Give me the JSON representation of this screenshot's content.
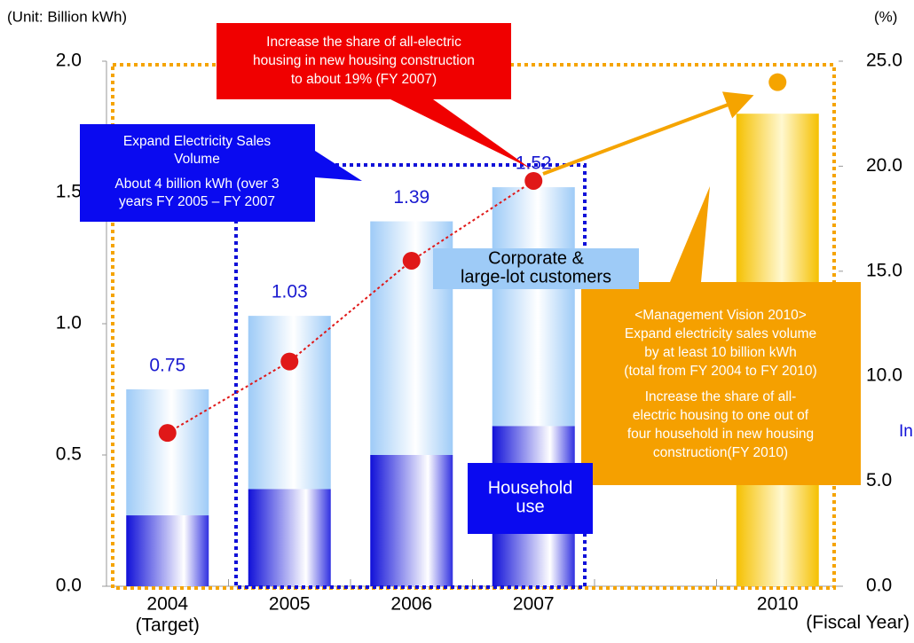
{
  "chart_data": {
    "type": "bar",
    "y_unit_label": "(Unit: Billion kWh)",
    "y2_unit_label": "(%)",
    "x_label": "(Fiscal Year)",
    "categories": [
      "2004",
      "2005",
      "2006",
      "2007",
      null,
      "2010"
    ],
    "category_notes": [
      "(Target)",
      null,
      null,
      null,
      null,
      null
    ],
    "ylim": [
      0,
      2.0
    ],
    "yticks": [
      {
        "value": 0,
        "label": "0.0"
      },
      {
        "value": 0.5,
        "label": "0.5"
      },
      {
        "value": 1.0,
        "label": "1.0"
      },
      {
        "value": 1.5,
        "label": "1.5"
      },
      {
        "value": 2.0,
        "label": "2.0"
      }
    ],
    "y2lim": [
      0,
      25.0
    ],
    "y2ticks": [
      {
        "value": 0,
        "label": "0.0"
      },
      {
        "value": 5,
        "label": "5.0"
      },
      {
        "value": 10,
        "label": "10.0"
      },
      {
        "value": 15,
        "label": "15.0"
      },
      {
        "value": 20,
        "label": "20.0"
      },
      {
        "value": 25,
        "label": "25.0"
      }
    ],
    "series": [
      {
        "name": "Household use",
        "color": "#1010d8",
        "values": [
          0.27,
          0.37,
          0.5,
          0.61,
          null,
          null
        ]
      },
      {
        "name": "Corporate & large-lot customers",
        "color": "#9ecbf7",
        "values": [
          0.48,
          0.66,
          0.89,
          0.91,
          null,
          null
        ]
      },
      {
        "type": "line",
        "axis": "y2",
        "color": "#e01818",
        "point_colors": [
          "#e01818",
          "#e01818",
          "#e01818",
          "#e01818",
          null,
          "#f5a400"
        ],
        "values": [
          7.3,
          10.7,
          15.5,
          19.3,
          null,
          24
        ]
      }
    ],
    "target_bar": {
      "color": "#f5c000",
      "values": [
        null,
        null,
        null,
        null,
        null,
        1.8
      ]
    },
    "totals": [
      0.75,
      1.03,
      1.39,
      1.52,
      null,
      null
    ],
    "annotations": {
      "red": [
        "Increase the share of all-electric",
        "housing in new housing construction",
        "to about 19% (FY 2007)"
      ],
      "blue": [
        "Expand Electricity Sales",
        "Volume",
        "About 4 billion kWh (over 3",
        "years FY 2005 – FY 2007"
      ],
      "orange": [
        "<Management Vision 2010>",
        "Expand electricity sales volume",
        "by at least 10 billion kWh",
        "(total from FY 2004 to FY 2010)",
        "Increase the share of all-",
        "electric housing to one out of",
        "four household in new housing",
        "construction(FY 2010)"
      ],
      "cut_off": "In"
    }
  }
}
